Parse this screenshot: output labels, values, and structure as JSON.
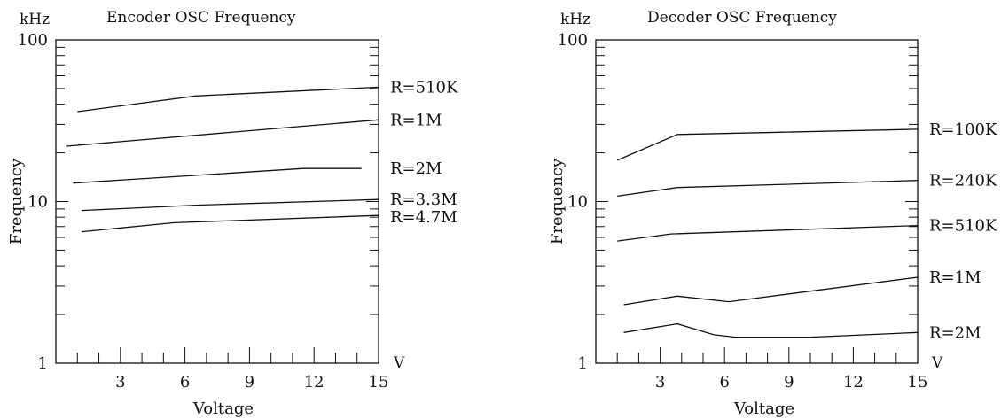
{
  "chart_data": [
    {
      "type": "line",
      "title": "Encoder OSC Frequency",
      "y_unit": "kHz",
      "x_unit": "V",
      "xlabel": "Voltage",
      "ylabel": "Frequency",
      "x_ticks": [
        3,
        6,
        9,
        12,
        15
      ],
      "y_ticks": [
        1,
        10,
        100
      ],
      "xlim": [
        0,
        15
      ],
      "ylim": [
        1,
        100
      ],
      "y_scale": "log",
      "grid": false,
      "series": [
        {
          "name": "R=510K",
          "x": [
            1,
            6.5,
            15
          ],
          "y": [
            36,
            45,
            51
          ]
        },
        {
          "name": "R=1M",
          "x": [
            0.5,
            15
          ],
          "y": [
            22,
            32
          ]
        },
        {
          "name": "R=2M",
          "x": [
            0.8,
            11.5,
            14.2
          ],
          "y": [
            13,
            16,
            16
          ]
        },
        {
          "name": "R=3.3M",
          "x": [
            1.2,
            6.5,
            15
          ],
          "y": [
            8.8,
            9.5,
            10.3
          ]
        },
        {
          "name": "R=4.7M",
          "x": [
            1.2,
            5.5,
            15
          ],
          "y": [
            6.5,
            7.4,
            8.2
          ]
        }
      ]
    },
    {
      "type": "line",
      "title": "Decoder OSC Frequency",
      "y_unit": "kHz",
      "x_unit": "V",
      "xlabel": "Voltage",
      "ylabel": "Frequency",
      "x_ticks": [
        3,
        6,
        9,
        12,
        15
      ],
      "y_ticks": [
        1,
        10,
        100
      ],
      "xlim": [
        0,
        15
      ],
      "ylim": [
        1,
        100
      ],
      "y_scale": "log",
      "grid": false,
      "series": [
        {
          "name": "R=100K",
          "x": [
            1,
            3.8,
            15
          ],
          "y": [
            18,
            26,
            28
          ]
        },
        {
          "name": "R=240K",
          "x": [
            1,
            3.8,
            15
          ],
          "y": [
            10.8,
            12.2,
            13.5
          ]
        },
        {
          "name": "R=510K",
          "x": [
            1,
            3.5,
            15
          ],
          "y": [
            5.7,
            6.3,
            7.1
          ]
        },
        {
          "name": "R=1M",
          "x": [
            1.3,
            3.8,
            6.2,
            15
          ],
          "y": [
            2.3,
            2.6,
            2.4,
            3.4
          ]
        },
        {
          "name": "R=2M",
          "x": [
            1.3,
            3.8,
            5.5,
            6.5,
            10,
            15
          ],
          "y": [
            1.55,
            1.75,
            1.5,
            1.45,
            1.45,
            1.55
          ]
        }
      ]
    }
  ]
}
